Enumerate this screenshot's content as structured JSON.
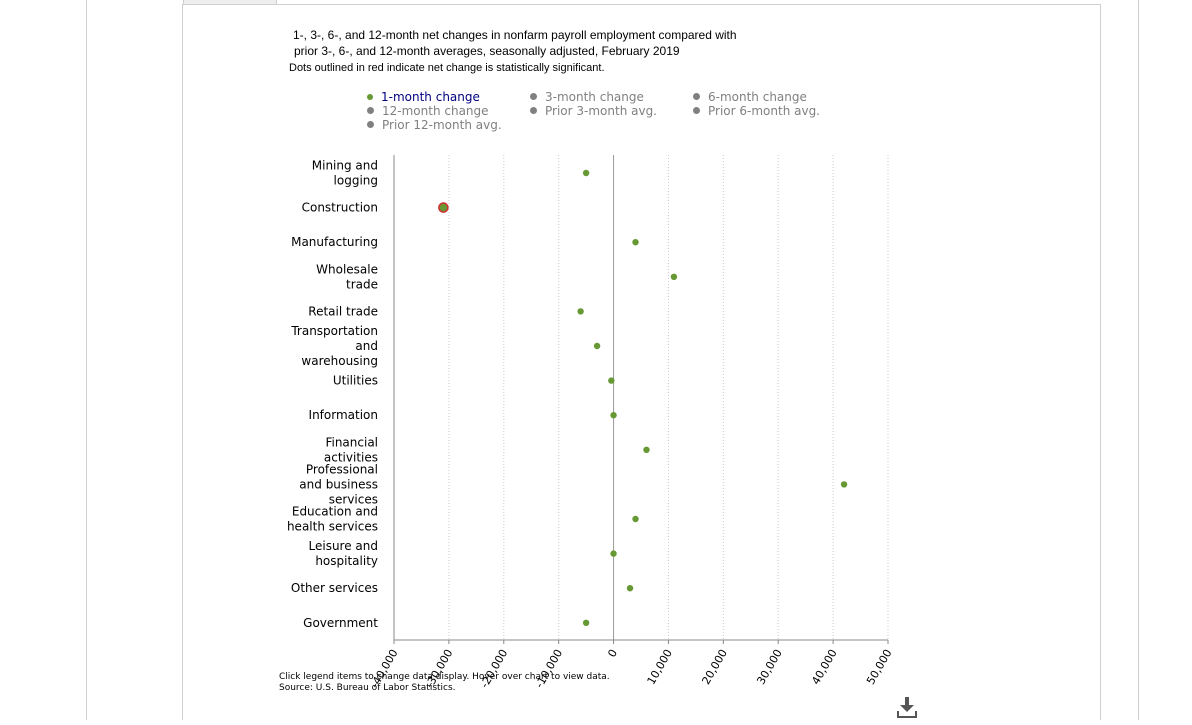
{
  "title": {
    "line1": "1-, 3-, 6-, and 12-month net changes in nonfarm payroll employment compared with",
    "line2": "prior 3-, 6-, and 12-month averages, seasonally adjusted, February 2019",
    "note": "Dots outlined in red indicate net change is statistically significant."
  },
  "legend": [
    {
      "label": "1-month change",
      "active": true
    },
    {
      "label": "3-month change",
      "active": false
    },
    {
      "label": "6-month change",
      "active": false
    },
    {
      "label": "12-month change",
      "active": false
    },
    {
      "label": "Prior 3-month avg.",
      "active": false
    },
    {
      "label": "Prior 6-month avg.",
      "active": false
    },
    {
      "label": "Prior 12-month avg.",
      "active": false
    }
  ],
  "footer": {
    "instructions": "Click legend items to change data display. Hover over chart to view data.",
    "source": "Source: U.S. Bureau of Labor Statistics."
  },
  "colors": {
    "series": "#669933",
    "significant_outline": "#cc3333",
    "inactive": "#808080",
    "active_legend_text": "#000080",
    "gridline": "#cccccc"
  },
  "icons": {
    "download": "download-icon"
  },
  "chart_data": {
    "type": "scatter",
    "orientation": "horizontal",
    "title": "1-, 3-, 6-, and 12-month net changes in nonfarm payroll employment compared with prior 3-, 6-, and 12-month averages, seasonally adjusted, February 2019",
    "categories": [
      [
        "Mining and",
        "logging"
      ],
      [
        "Construction"
      ],
      [
        "Manufacturing"
      ],
      [
        "Wholesale",
        "trade"
      ],
      [
        "Retail trade"
      ],
      [
        "Transportation",
        "and",
        "warehousing"
      ],
      [
        "Utilities"
      ],
      [
        "Information"
      ],
      [
        "Financial",
        "activities"
      ],
      [
        "Professional",
        "and business",
        "services"
      ],
      [
        "Education and",
        "health services"
      ],
      [
        "Leisure and",
        "hospitality"
      ],
      [
        "Other services"
      ],
      [
        "Government"
      ]
    ],
    "series": [
      {
        "name": "1-month change",
        "values": [
          -5000,
          -31000,
          4000,
          11000,
          -6000,
          -3000,
          -400,
          0,
          6000,
          42000,
          4000,
          0,
          3000,
          -5000
        ],
        "significant": [
          false,
          true,
          false,
          false,
          false,
          false,
          false,
          false,
          false,
          false,
          false,
          false,
          false,
          false
        ]
      }
    ],
    "xlim": [
      -40000,
      50000
    ],
    "xticks": [
      -40000,
      -30000,
      -20000,
      -10000,
      0,
      10000,
      20000,
      30000,
      40000,
      50000
    ],
    "xtick_labels": [
      "-40,000",
      "-30,000",
      "-20,000",
      "-10,000",
      "0",
      "10,000",
      "20,000",
      "30,000",
      "40,000",
      "50,000"
    ],
    "grid": "vertical dotted",
    "zero_line": true,
    "legend_position": "top"
  }
}
